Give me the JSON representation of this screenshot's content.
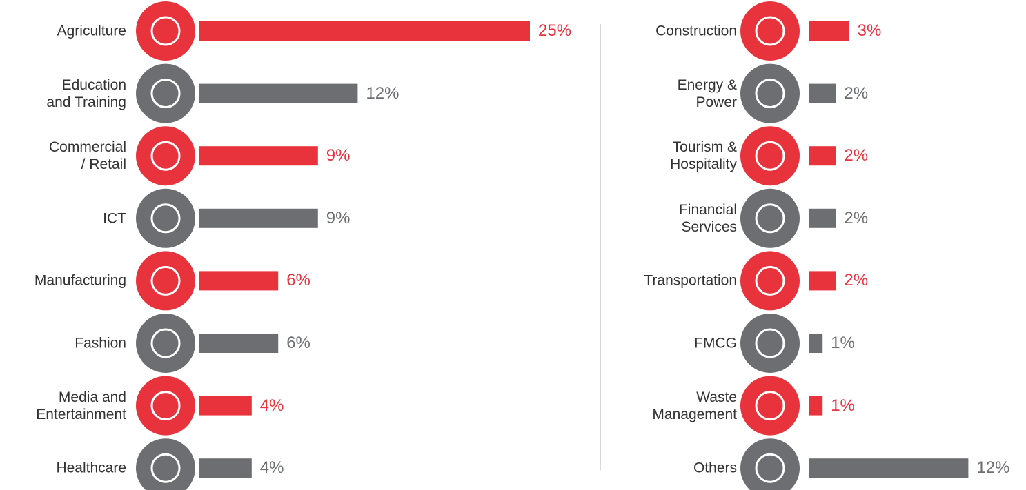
{
  "chart_data": [
    {
      "type": "hbar",
      "categories": [
        "Agriculture",
        "Education\nand Training",
        "Commercial\n/ Retail",
        "ICT",
        "Manufacturing",
        "Fashion",
        "Media and\nEntertainment",
        "Healthcare"
      ],
      "values": [
        25,
        12,
        9,
        9,
        6,
        6,
        4,
        4
      ],
      "value_labels": [
        "25%",
        "12%",
        "9%",
        "9%",
        "6%",
        "6%",
        "4%",
        "4%"
      ],
      "colors": [
        "#e8323c",
        "#6d6e71",
        "#e8323c",
        "#6d6e71",
        "#e8323c",
        "#6d6e71",
        "#e8323c",
        "#6d6e71"
      ]
    },
    {
      "type": "hbar",
      "categories": [
        "Construction",
        "Energy &\nPower",
        "Tourism &\nHospitality",
        "Financial\nServices",
        "Transportation",
        "FMCG",
        "Waste\nManagement",
        "Others"
      ],
      "values": [
        3,
        2,
        2,
        2,
        2,
        1,
        1,
        12
      ],
      "value_labels": [
        "3%",
        "2%",
        "2%",
        "2%",
        "2%",
        "1%",
        "1%",
        "12%"
      ],
      "colors": [
        "#e8323c",
        "#6d6e71",
        "#e8323c",
        "#6d6e71",
        "#e8323c",
        "#6d6e71",
        "#e8323c",
        "#6d6e71"
      ]
    }
  ]
}
